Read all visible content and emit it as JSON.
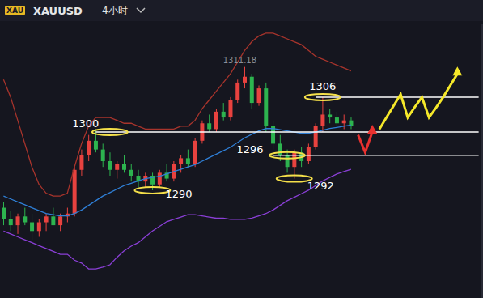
{
  "chart_data": {
    "type": "candlestick",
    "badge": "XAU",
    "title": "XAUUSD",
    "subtitle": "4小时",
    "categories": [
      null,
      null,
      null,
      null,
      null,
      null,
      null,
      null,
      null,
      null,
      null,
      null,
      null,
      null,
      null,
      null,
      null,
      null,
      null,
      null,
      null,
      null,
      null,
      null,
      null,
      null,
      null,
      null,
      null,
      null,
      null,
      null,
      null,
      null,
      null,
      null,
      null,
      null,
      null,
      null,
      null,
      null,
      null,
      null,
      null,
      null,
      null,
      null,
      null,
      null,
      null,
      null,
      null,
      null,
      null,
      null,
      null,
      null,
      null,
      null,
      null,
      null,
      null,
      null,
      null,
      null,
      null,
      null
    ],
    "open": [
      1287,
      1285,
      1284,
      1285.5,
      1284.5,
      1283,
      1284.5,
      1285.5,
      1284,
      1285.5,
      1286,
      1293.5,
      1296,
      1298.5,
      1297,
      1295,
      1293.5,
      1294.5,
      1293.5,
      1292.5,
      1291.5,
      1292.5,
      1291,
      1293,
      1292,
      1294.5,
      1295.5,
      1294.5,
      1298.5,
      1301.5,
      1300.5,
      1303.5,
      1302.5,
      1305.5,
      1308.5,
      1309.5,
      1305,
      1307.5,
      1301,
      1298,
      1296,
      1294,
      1296.5,
      1295,
      1297.5,
      1301,
      1303,
      1302.5,
      1301.5,
      1302,
      null,
      null,
      null,
      null,
      null,
      null,
      null,
      null,
      null,
      null,
      null,
      null,
      null,
      null,
      null,
      null,
      null,
      null
    ],
    "high": [
      1288,
      1286.5,
      1286,
      1287,
      1286,
      1285,
      1286,
      1287,
      1286,
      1287,
      1294,
      1297,
      1299.5,
      1300.5,
      1298,
      1296.5,
      1295,
      1296,
      1294.5,
      1293.5,
      1293,
      1293,
      1293.5,
      1294.5,
      1295,
      1296,
      1297,
      1299,
      1302,
      1303,
      1304,
      1305,
      1306,
      1309,
      1311.18,
      1310,
      1308,
      1308.5,
      1302,
      1299.5,
      1297,
      1297,
      1297.5,
      1298,
      1301.5,
      1306,
      1304,
      1303.5,
      1303,
      1302.5,
      null,
      null,
      null,
      null,
      null,
      null,
      null,
      null,
      null,
      null,
      null,
      null,
      null,
      null,
      null,
      null,
      null,
      null
    ],
    "low": [
      1284,
      1283,
      1282.5,
      1284,
      1281.5,
      1282,
      1283,
      1284,
      1283,
      1284.5,
      1285.5,
      1292.5,
      1295,
      1296.5,
      1294,
      1292.5,
      1292,
      1293,
      1291.5,
      1290.5,
      1290.5,
      1290,
      1290.5,
      1291.5,
      1291.5,
      1293,
      1294,
      1294,
      1298,
      1300,
      1300,
      1302,
      1302,
      1305,
      1307.5,
      1304,
      1304.5,
      1300,
      1297,
      1295,
      1293,
      1292,
      1294,
      1294.5,
      1297,
      1300,
      1301.5,
      1301,
      1300.5,
      1300.5,
      null,
      null,
      null,
      null,
      null,
      null,
      null,
      null,
      null,
      null,
      null,
      null,
      null,
      null,
      null,
      null,
      null,
      null
    ],
    "close": [
      1285,
      1284,
      1285.5,
      1284.5,
      1283,
      1284.5,
      1285.5,
      1284,
      1285.5,
      1286,
      1293.5,
      1296,
      1298.5,
      1297,
      1295,
      1293.5,
      1294.5,
      1293.5,
      1292.5,
      1291.5,
      1292.5,
      1291,
      1293,
      1292,
      1294.5,
      1295.5,
      1294.5,
      1298.5,
      1301.5,
      1300.5,
      1303.5,
      1302.5,
      1305.5,
      1308.5,
      1309.5,
      1305,
      1307.5,
      1301,
      1298,
      1296,
      1294,
      1296.5,
      1295,
      1297.5,
      1301,
      1303,
      1302.5,
      1301.5,
      1302,
      1301,
      null,
      null,
      null,
      null,
      null,
      null,
      null,
      null,
      null,
      null,
      null,
      null,
      null,
      null,
      null,
      null,
      null,
      null
    ],
    "colors": [
      "#2db44f",
      "#2db44f",
      "#e8423f",
      "#2db44f",
      "#2db44f",
      "#e8423f",
      "#e8423f",
      "#2db44f",
      "#e8423f",
      "#e8423f",
      "#e8423f",
      "#e8423f",
      "#e8423f",
      "#2db44f",
      "#2db44f",
      "#2db44f",
      "#e8423f",
      "#2db44f",
      "#2db44f",
      "#2db44f",
      "#e8423f",
      "#2db44f",
      "#e8423f",
      "#2db44f",
      "#e8423f",
      "#e8423f",
      "#2db44f",
      "#e8423f",
      "#e8423f",
      "#2db44f",
      "#e8423f",
      "#2db44f",
      "#e8423f",
      "#e8423f",
      "#e8423f",
      "#2db44f",
      "#e8423f",
      "#2db44f",
      "#2db44f",
      "#2db44f",
      "#2db44f",
      "#e8423f",
      "#2db44f",
      "#e8423f",
      "#e8423f",
      "#e8423f",
      "#2db44f",
      "#2db44f",
      "#e8423f",
      "#2db44f",
      null,
      null,
      null,
      null,
      null,
      null,
      null,
      null,
      null,
      null,
      null,
      null,
      null,
      null,
      null,
      null,
      null,
      null
    ],
    "bands": [
      {
        "color": "#a8342c",
        "values": [
          1309,
          1306,
          1302,
          1298,
          1294,
          1291,
          1289.5,
          1289,
          1289,
          1289.5,
          1294,
          1298,
          1301,
          1302.5,
          1302.5,
          1302.5,
          1302,
          1301.5,
          1301.5,
          1301,
          1300.5,
          1300.5,
          1300.5,
          1300.5,
          1300.5,
          1301,
          1301,
          1302,
          1304,
          1305.5,
          1307,
          1308.5,
          1310,
          1312,
          1314,
          1315.5,
          1316.5,
          1317,
          1317,
          1316.5,
          1316,
          1315.5,
          1315,
          1314,
          1313,
          1312.5,
          1312,
          1311.5,
          1311,
          1310.5,
          null,
          null,
          null,
          null,
          null,
          null,
          null,
          null,
          null,
          null,
          null,
          null,
          null,
          null,
          null,
          null,
          null,
          null
        ]
      },
      {
        "color": "#2f7fd6",
        "values": [
          1289,
          1288.5,
          1288,
          1287.5,
          1287,
          1286.5,
          1286,
          1285.8,
          1285.6,
          1285.6,
          1286,
          1286.6,
          1287.4,
          1288.2,
          1289,
          1289.6,
          1290.2,
          1290.8,
          1291.2,
          1291.6,
          1292,
          1292.2,
          1292.4,
          1292.8,
          1293.2,
          1293.6,
          1294,
          1294.4,
          1295,
          1295.6,
          1296.2,
          1296.8,
          1297.4,
          1298.2,
          1299,
          1299.6,
          1300.2,
          1300.6,
          1300.6,
          1300.4,
          1300.2,
          1300,
          1299.8,
          1299.8,
          1300,
          1300.3,
          1300.6,
          1300.8,
          1301,
          1301.2,
          null,
          null,
          null,
          null,
          null,
          null,
          null,
          null,
          null,
          null,
          null,
          null,
          null,
          null,
          null,
          null,
          null,
          null
        ]
      },
      {
        "color": "#8a3fd6",
        "values": [
          1283,
          1282.5,
          1282,
          1281.5,
          1281,
          1280.5,
          1280,
          1279.5,
          1279,
          1279,
          1278,
          1277.5,
          1276.5,
          1276.5,
          1276.8,
          1277.2,
          1278.5,
          1279.6,
          1280.4,
          1281,
          1282,
          1283,
          1283.8,
          1284.6,
          1285,
          1285.4,
          1285.8,
          1285.8,
          1285.6,
          1285.4,
          1285.2,
          1285.2,
          1285,
          1285,
          1285,
          1285.2,
          1285.6,
          1286,
          1286.6,
          1287.4,
          1288.2,
          1288.8,
          1289.4,
          1290,
          1290.8,
          1291.6,
          1292.2,
          1292.8,
          1293.2,
          1293.6,
          null,
          null,
          null,
          null,
          null,
          null,
          null,
          null,
          null,
          null,
          null,
          null,
          null,
          null,
          null,
          null,
          null,
          null
        ]
      }
    ],
    "projections": [
      {
        "color": "#e8312f",
        "x": [
          50,
          51,
          52
        ],
        "values": [
          1299.5,
          1296.5,
          1300
        ]
      },
      {
        "color": "#f5e82a",
        "x": [
          53,
          54,
          55,
          56,
          57,
          58,
          59,
          60,
          61,
          62,
          63,
          64
        ],
        "values": [
          1300.5,
          1302.5,
          1304.5,
          1306.5,
          1302.5,
          1304.3,
          1306,
          1302.5,
          1304.2,
          1306,
          1308,
          1310
        ]
      }
    ],
    "levels": [
      {
        "y": 1300,
        "x_from": 13
      },
      {
        "y": 1306,
        "x_from": 44
      },
      {
        "y": 1296,
        "x_from": 38
      }
    ],
    "annotations": [
      {
        "label": "1300",
        "x": 15,
        "y": 1300,
        "marker": "ellipse",
        "color": "#ffffff"
      },
      {
        "label": "1290",
        "x": 21,
        "y": 1290,
        "marker": "ellipse",
        "color": "#ffffff"
      },
      {
        "label": "1296",
        "x": 40,
        "y": 1296,
        "marker": "ellipse",
        "color": "#ffffff"
      },
      {
        "label": "1292",
        "x": 41,
        "y": 1292,
        "marker": "ellipse",
        "color": "#ffffff"
      },
      {
        "label": "1306",
        "x": 45,
        "y": 1306,
        "marker": "ellipse",
        "color": "#ffffff"
      },
      {
        "label": "1311.18",
        "x": 34,
        "y": 1311.18,
        "marker": "none",
        "color": "#8a8f99"
      }
    ],
    "ylim": [
      1271.5,
      1318.5
    ],
    "yticks": [
      1280,
      1290,
      1300,
      1310
    ],
    "tick_labels": false,
    "grid": false
  }
}
